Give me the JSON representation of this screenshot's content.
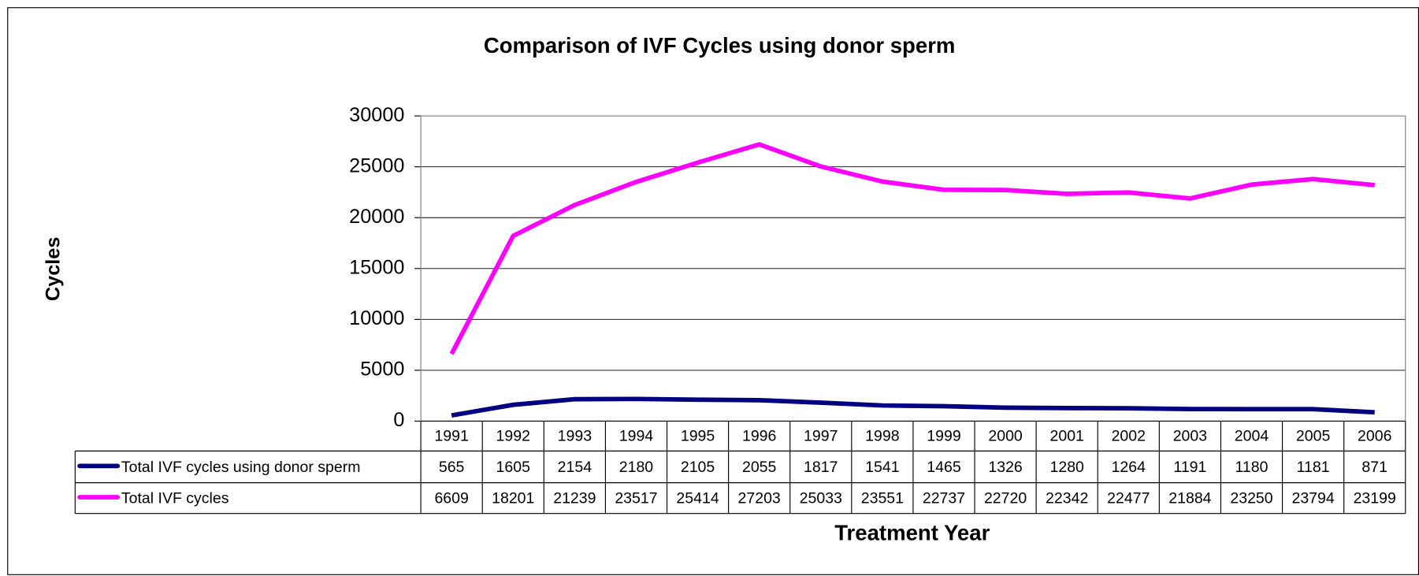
{
  "chart_data": {
    "type": "line",
    "title": "Comparison of IVF Cycles using donor sperm",
    "y_label": "Cycles",
    "x_label": "Treatment Year",
    "categories": [
      "1991",
      "1992",
      "1993",
      "1994",
      "1995",
      "1996",
      "1997",
      "1998",
      "1999",
      "2000",
      "2001",
      "2002",
      "2003",
      "2004",
      "2005",
      "2006"
    ],
    "series": [
      {
        "name": "Total IVF cycles using donor sperm",
        "color": "#000080",
        "values": [
          565,
          1605,
          2154,
          2180,
          2105,
          2055,
          1817,
          1541,
          1465,
          1326,
          1280,
          1264,
          1191,
          1180,
          1181,
          871
        ]
      },
      {
        "name": "Total IVF cycles",
        "color": "#ff00ff",
        "values": [
          6609,
          18201,
          21239,
          23517,
          25414,
          27203,
          25033,
          23551,
          22737,
          22720,
          22342,
          22477,
          21884,
          23250,
          23794,
          23199
        ]
      }
    ],
    "ylim": [
      0,
      30000
    ],
    "yticks": [
      0,
      5000,
      10000,
      15000,
      20000,
      25000,
      30000
    ],
    "grid": true
  }
}
